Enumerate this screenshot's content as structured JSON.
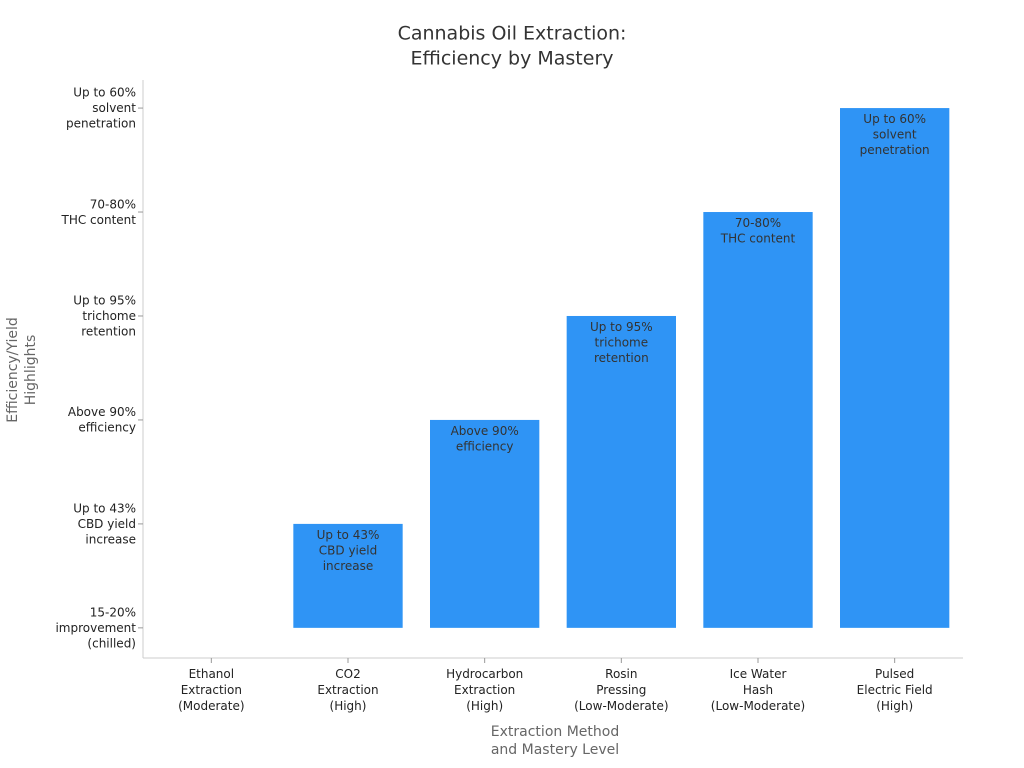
{
  "chart_data": {
    "type": "bar",
    "title": "Cannabis Oil Extraction:\nEfficiency by Mastery",
    "x_label": "Extraction Method\nand Mastery Level",
    "y_label": "Efficiency/Yield\nHighlights",
    "categories": [
      "Ethanol\nExtraction\n(Moderate)",
      "CO2\nExtraction\n(High)",
      "Hydrocarbon\nExtraction\n(High)",
      "Rosin\nPressing\n(Low-Moderate)",
      "Ice Water\nHash\n(Low-Moderate)",
      "Pulsed\nElectric Field\n(High)"
    ],
    "values": [
      0,
      1,
      2,
      3,
      4,
      5
    ],
    "value_labels": [
      null,
      "Up to 43%\nCBD yield\nincrease",
      "Above 90%\nefficiency",
      "Up to 95%\ntrichome\nretention",
      "70-80%\nTHC content",
      "Up to 60%\nsolvent\npenetration"
    ],
    "color": "#2f94f5",
    "ylim": [
      -0.29,
      5.27
    ],
    "yticks": [
      {
        "value": 0,
        "label": "15-20%\nimprovement\n(chilled)"
      },
      {
        "value": 1,
        "label": "Up to 43%\nCBD yield\nincrease"
      },
      {
        "value": 2,
        "label": "Above 90%\nefficiency"
      },
      {
        "value": 3,
        "label": "Up to 95%\ntrichome\nretention"
      },
      {
        "value": 4,
        "label": "70-80%\nTHC content"
      },
      {
        "value": 5,
        "label": "Up to 60%\nsolvent\npenetration"
      }
    ],
    "grid": false
  }
}
